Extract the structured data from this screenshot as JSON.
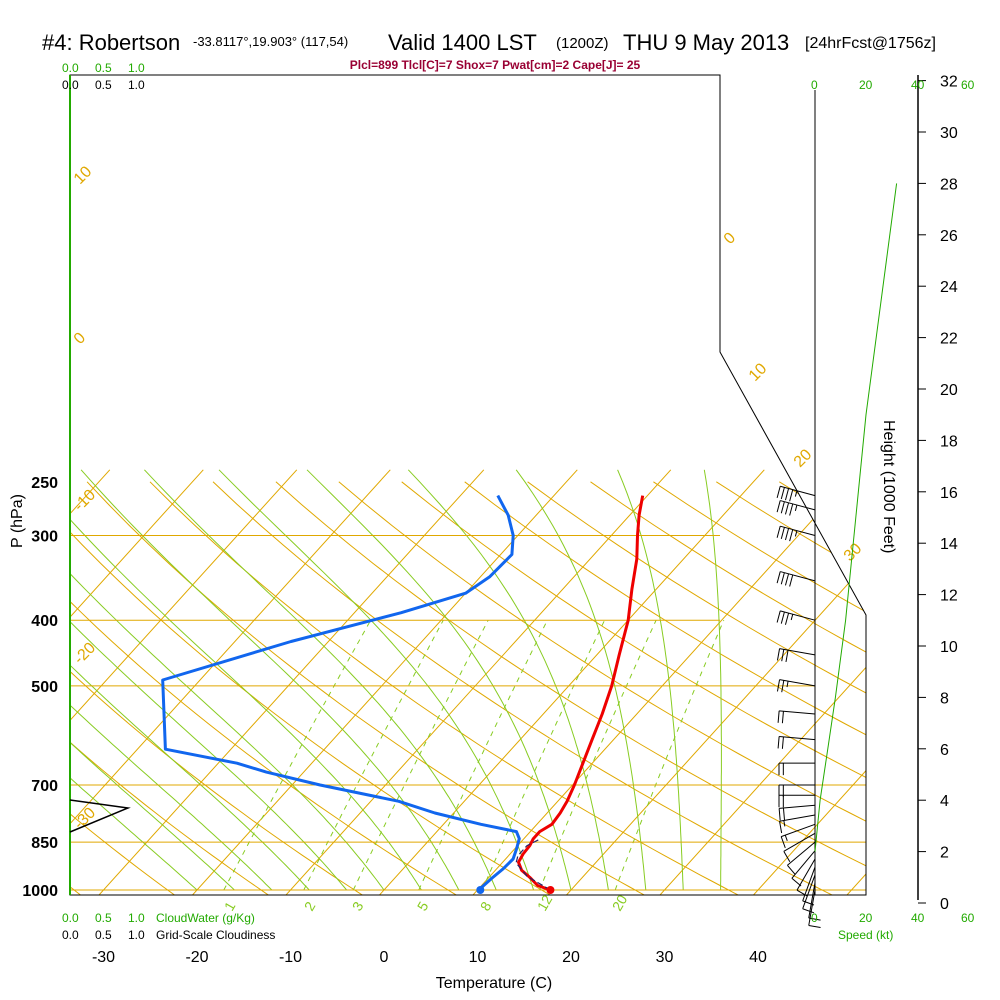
{
  "header": {
    "station": "#4: Robertson",
    "coords": "-33.8117°,19.903° (117,54)",
    "valid": "Valid 1400 LST",
    "zulu": "(1200Z)",
    "date": "THU 9 May 2013",
    "forecast": "[24hrFcst@1756z]",
    "indices": "Plcl=899 Tlcl[C]=7 Shox=7 Pwat[cm]=2 Cape[J]= 25"
  },
  "colors": {
    "isotherm": "#e0a800",
    "adiabat": "#88cc22",
    "mixing_ratio": "#88cc22",
    "temperature": "#ee0000",
    "dewpoint": "#1166ee",
    "parcel": "#222266",
    "green_text": "#22aa00",
    "title_red": "#990033"
  },
  "chart_data": {
    "type": "line",
    "title": "#4: Robertson",
    "xlabel": "Temperature (C)",
    "ylabel": "P (hPa)",
    "y2label": "Height (1000 Feet)",
    "x_ticks": [
      "-30",
      "-20",
      "-10",
      "0",
      "10",
      "20",
      "30",
      "40"
    ],
    "p_ticks": [
      "250",
      "300",
      "400",
      "500",
      "700",
      "850",
      "1000"
    ],
    "height_ticks": [
      "0",
      "2",
      "4",
      "6",
      "8",
      "10",
      "12",
      "14",
      "16",
      "18",
      "20",
      "22",
      "24",
      "26",
      "28",
      "30",
      "32"
    ],
    "cloud_water_ticks": [
      "0.0",
      "0.5",
      "1.0"
    ],
    "cloudiness_ticks": [
      "0.0",
      "0.5",
      "1.0"
    ],
    "cloud_water_label": "CloudWater (g/Kg)",
    "cloudiness_label": "Grid-Scale Cloudiness",
    "speed_ticks": [
      "0",
      "20",
      "40",
      "60"
    ],
    "speed_label": "Speed (kt)",
    "isotherm_labels": [
      "10",
      "0",
      "-10",
      "-20",
      "-30",
      "0",
      "10",
      "20",
      "30"
    ],
    "mixing_ratio_labels": [
      "1",
      "2",
      "3",
      "5",
      "8",
      "12",
      "20"
    ],
    "series": [
      {
        "name": "Temperature",
        "color": "#ee0000",
        "points": [
          [
            17.8,
            1000
          ],
          [
            16,
            985
          ],
          [
            14.5,
            960
          ],
          [
            12.8,
            935
          ],
          [
            11.7,
            910
          ],
          [
            11.4,
            885
          ],
          [
            11.3,
            860
          ],
          [
            11.0,
            840
          ],
          [
            11.0,
            820
          ],
          [
            11.6,
            800
          ],
          [
            11.4,
            770
          ],
          [
            11.0,
            740
          ],
          [
            10.2,
            700
          ],
          [
            9.0,
            650
          ],
          [
            7.7,
            600
          ],
          [
            6.3,
            550
          ],
          [
            4.6,
            500
          ],
          [
            2.4,
            450
          ],
          [
            0.0,
            400
          ],
          [
            -2.6,
            360
          ],
          [
            -5.0,
            325
          ],
          [
            -7.2,
            300
          ],
          [
            -9.0,
            280
          ],
          [
            -10.5,
            262
          ]
        ]
      },
      {
        "name": "Dewpoint",
        "color": "#1166ee",
        "points": [
          [
            10.3,
            1000
          ],
          [
            10.2,
            990
          ],
          [
            10.4,
            960
          ],
          [
            10.7,
            930
          ],
          [
            10.8,
            900
          ],
          [
            10.2,
            870
          ],
          [
            9.5,
            840
          ],
          [
            8.5,
            820
          ],
          [
            4.0,
            800
          ],
          [
            -2.0,
            770
          ],
          [
            -7.0,
            740
          ],
          [
            -17,
            700
          ],
          [
            -24,
            670
          ],
          [
            -28,
            650
          ],
          [
            -37,
            620
          ],
          [
            -44,
            490
          ],
          [
            -34,
            430
          ],
          [
            -25,
            390
          ],
          [
            -20,
            365
          ],
          [
            -19,
            345
          ],
          [
            -18.8,
            320
          ],
          [
            -20.5,
            300
          ],
          [
            -23,
            280
          ],
          [
            -26,
            262
          ]
        ]
      },
      {
        "name": "Parcel",
        "color": "#222266",
        "points": [
          [
            17.8,
            1000
          ],
          [
            14,
            955
          ],
          [
            11.5,
            912
          ],
          [
            11.0,
            890
          ],
          [
            11.0,
            860
          ],
          [
            11.8,
            840
          ]
        ]
      }
    ],
    "surface_temperature": 17.8,
    "surface_dewpoint": 10.3,
    "xlim": [
      -35,
      50
    ],
    "ylim": [
      1000,
      250
    ],
    "height_curve_kft": [
      [
        0,
        2
      ],
      [
        2,
        4
      ],
      [
        5,
        6
      ],
      [
        8,
        8
      ],
      [
        12,
        11
      ],
      [
        16,
        15
      ],
      [
        20,
        19
      ],
      [
        24,
        22
      ],
      [
        28,
        25
      ],
      [
        32,
        28
      ]
    ],
    "wind_barbs": [
      {
        "p": 1000,
        "dir": 190,
        "spd": 10
      },
      {
        "p": 975,
        "dir": 190,
        "spd": 10
      },
      {
        "p": 950,
        "dir": 200,
        "spd": 10
      },
      {
        "p": 925,
        "dir": 200,
        "spd": 10
      },
      {
        "p": 900,
        "dir": 210,
        "spd": 10
      },
      {
        "p": 875,
        "dir": 220,
        "spd": 10
      },
      {
        "p": 850,
        "dir": 230,
        "spd": 10
      },
      {
        "p": 825,
        "dir": 240,
        "spd": 10
      },
      {
        "p": 800,
        "dir": 250,
        "spd": 15
      },
      {
        "p": 775,
        "dir": 260,
        "spd": 15
      },
      {
        "p": 750,
        "dir": 265,
        "spd": 20
      },
      {
        "p": 725,
        "dir": 270,
        "spd": 20
      },
      {
        "p": 700,
        "dir": 270,
        "spd": 20
      },
      {
        "p": 650,
        "dir": 270,
        "spd": 20
      },
      {
        "p": 600,
        "dir": 275,
        "spd": 20
      },
      {
        "p": 550,
        "dir": 275,
        "spd": 20
      },
      {
        "p": 500,
        "dir": 280,
        "spd": 25
      },
      {
        "p": 450,
        "dir": 280,
        "spd": 30
      },
      {
        "p": 400,
        "dir": 285,
        "spd": 35
      },
      {
        "p": 350,
        "dir": 285,
        "spd": 40
      },
      {
        "p": 300,
        "dir": 285,
        "spd": 45
      },
      {
        "p": 275,
        "dir": 285,
        "spd": 45
      },
      {
        "p": 262,
        "dir": 285,
        "spd": 45
      }
    ]
  }
}
